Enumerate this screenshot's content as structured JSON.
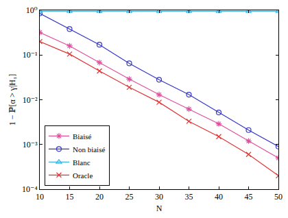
{
  "chart_data": {
    "type": "line",
    "x_label": "N",
    "y_label": "1 − ℙ[α > γ|H₁]",
    "log": "y",
    "grid": false,
    "legend": "lower left",
    "xlim": [
      10,
      50
    ],
    "xticks": [
      10,
      15,
      20,
      25,
      30,
      35,
      40,
      45,
      50
    ],
    "ylim": [
      0.0001,
      1
    ],
    "yticks": [
      {
        "value": 0.0001,
        "label": "10⁻⁴"
      },
      {
        "value": 0.001,
        "label": "10⁻³"
      },
      {
        "value": 0.01,
        "label": "10⁻²"
      },
      {
        "value": 0.1,
        "label": "10⁻¹"
      },
      {
        "value": 1,
        "label": "10⁰"
      }
    ],
    "x": [
      10,
      15,
      20,
      25,
      30,
      35,
      40,
      45,
      50
    ],
    "series": [
      {
        "name": "Biaisé",
        "color": "#e0509e",
        "marker": "asterisk",
        "values": [
          0.32,
          0.16,
          0.068,
          0.029,
          0.013,
          0.0062,
          0.0029,
          0.0012,
          0.0005
        ]
      },
      {
        "name": "Non biaisé",
        "color": "#3535c8",
        "marker": "circle",
        "values": [
          0.85,
          0.38,
          0.17,
          0.065,
          0.028,
          0.013,
          0.0052,
          0.0021,
          0.0009
        ]
      },
      {
        "name": "Blanc",
        "color": "#3cb4e0",
        "marker": "triangle",
        "values": [
          0.95,
          0.95,
          0.95,
          0.95,
          0.95,
          0.95,
          0.95,
          0.95,
          0.95
        ]
      },
      {
        "name": "Oracle",
        "color": "#e03535",
        "marker": "x",
        "values": [
          0.2,
          0.105,
          0.044,
          0.019,
          0.0088,
          0.0033,
          0.0015,
          0.0006,
          0.0002
        ]
      }
    ]
  }
}
